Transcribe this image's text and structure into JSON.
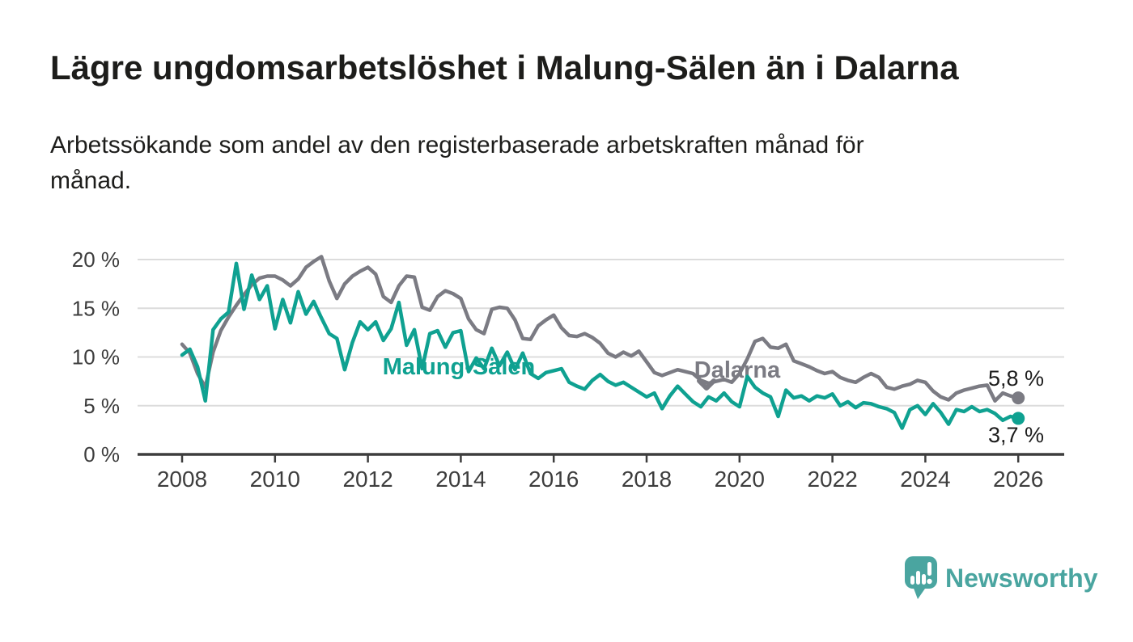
{
  "title": "Lägre ungdomsarbetslöshet i Malung-Sälen än i Dalarna",
  "subtitle_lines": [
    "Arbetssökande som andel av den registerbaserade arbetskraften månad för",
    "månad."
  ],
  "footer": {
    "brand": "Newsworthy",
    "logo_icon": "speech-bubble-bar-chart-exclamation",
    "brand_color": "#4aa5a0"
  },
  "chart_data": {
    "type": "line",
    "title": "Lägre ungdomsarbetslöshet i Malung-Sälen än i Dalarna",
    "subtitle": "Arbetssökande som andel av den registerbaserade arbetskraften månad för månad.",
    "x_unit": "year",
    "x_start": 2008,
    "x_step_years": 0.1666667,
    "xlim": [
      2007.05,
      2027.0
    ],
    "ylim": [
      0,
      21.5
    ],
    "grid": "horizontal",
    "legend_position": "inline-labels",
    "y_ticks": {
      "values": [
        0,
        5,
        10,
        15,
        20
      ],
      "labels": [
        "0 %",
        "5 %",
        "10 %",
        "15 %",
        "20 %"
      ]
    },
    "x_ticks": {
      "values": [
        2008,
        2010,
        2012,
        2014,
        2016,
        2018,
        2020,
        2022,
        2024,
        2026
      ],
      "labels": [
        "2008",
        "2010",
        "2012",
        "2014",
        "2016",
        "2018",
        "2020",
        "2022",
        "2024",
        "2026"
      ]
    },
    "series": [
      {
        "name": "Dalarna",
        "color": "#7b7b83",
        "end_label": "5,8 %",
        "latest_value": 5.8,
        "values": [
          11.3,
          10.4,
          8.3,
          6.9,
          10.5,
          12.7,
          14.1,
          15.3,
          16.4,
          17.4,
          18.1,
          18.3,
          18.3,
          17.9,
          17.3,
          18.0,
          19.2,
          19.8,
          20.3,
          17.8,
          16.0,
          17.5,
          18.3,
          18.8,
          19.2,
          18.5,
          16.2,
          15.6,
          17.3,
          18.3,
          18.2,
          15.1,
          14.8,
          16.2,
          16.8,
          16.5,
          16.0,
          13.9,
          12.8,
          12.4,
          14.9,
          15.1,
          15.0,
          13.8,
          11.9,
          11.8,
          13.2,
          13.8,
          14.3,
          13.0,
          12.2,
          12.1,
          12.4,
          12.0,
          11.4,
          10.4,
          10.0,
          10.5,
          10.1,
          10.6,
          9.5,
          8.4,
          8.1,
          8.4,
          8.7,
          8.5,
          8.3,
          7.6,
          7.3,
          7.5,
          7.7,
          7.4,
          8.3,
          9.8,
          11.6,
          11.9,
          11.0,
          10.9,
          11.3,
          9.6,
          9.3,
          9.0,
          8.6,
          8.3,
          8.5,
          7.9,
          7.6,
          7.4,
          7.9,
          8.3,
          7.9,
          6.9,
          6.7,
          7.0,
          7.2,
          7.6,
          7.4,
          6.5,
          5.9,
          5.6,
          6.3,
          6.6,
          6.8,
          7.0,
          7.1,
          5.5,
          6.3,
          6.0,
          5.8
        ]
      },
      {
        "name": "Malung-Sälen",
        "color": "#0fa191",
        "end_label": "3,7 %",
        "latest_value": 3.7,
        "values": [
          10.2,
          10.8,
          9.0,
          5.5,
          12.8,
          13.9,
          14.6,
          19.6,
          14.9,
          18.4,
          15.9,
          17.3,
          12.9,
          15.9,
          13.5,
          16.7,
          14.4,
          15.7,
          14.0,
          12.4,
          11.9,
          8.7,
          11.5,
          13.6,
          12.8,
          13.6,
          11.7,
          12.9,
          15.6,
          11.2,
          12.8,
          8.8,
          12.4,
          12.7,
          11.0,
          12.5,
          12.7,
          8.5,
          9.9,
          8.8,
          10.9,
          9.1,
          10.5,
          8.7,
          10.4,
          8.3,
          7.8,
          8.4,
          8.6,
          8.8,
          7.4,
          7.0,
          6.7,
          7.6,
          8.2,
          7.5,
          7.1,
          7.4,
          6.9,
          6.4,
          5.9,
          6.3,
          4.7,
          6.0,
          7.0,
          6.2,
          5.4,
          4.9,
          5.9,
          5.5,
          6.3,
          5.4,
          4.9,
          8.0,
          6.9,
          6.3,
          5.9,
          3.9,
          6.6,
          5.8,
          6.0,
          5.5,
          6.0,
          5.8,
          6.2,
          5.0,
          5.4,
          4.8,
          5.3,
          5.2,
          4.9,
          4.7,
          4.3,
          2.7,
          4.6,
          5.0,
          4.1,
          5.2,
          4.3,
          3.1,
          4.6,
          4.4,
          4.9,
          4.4,
          4.6,
          4.2,
          3.5,
          3.9,
          3.7
        ]
      }
    ]
  }
}
